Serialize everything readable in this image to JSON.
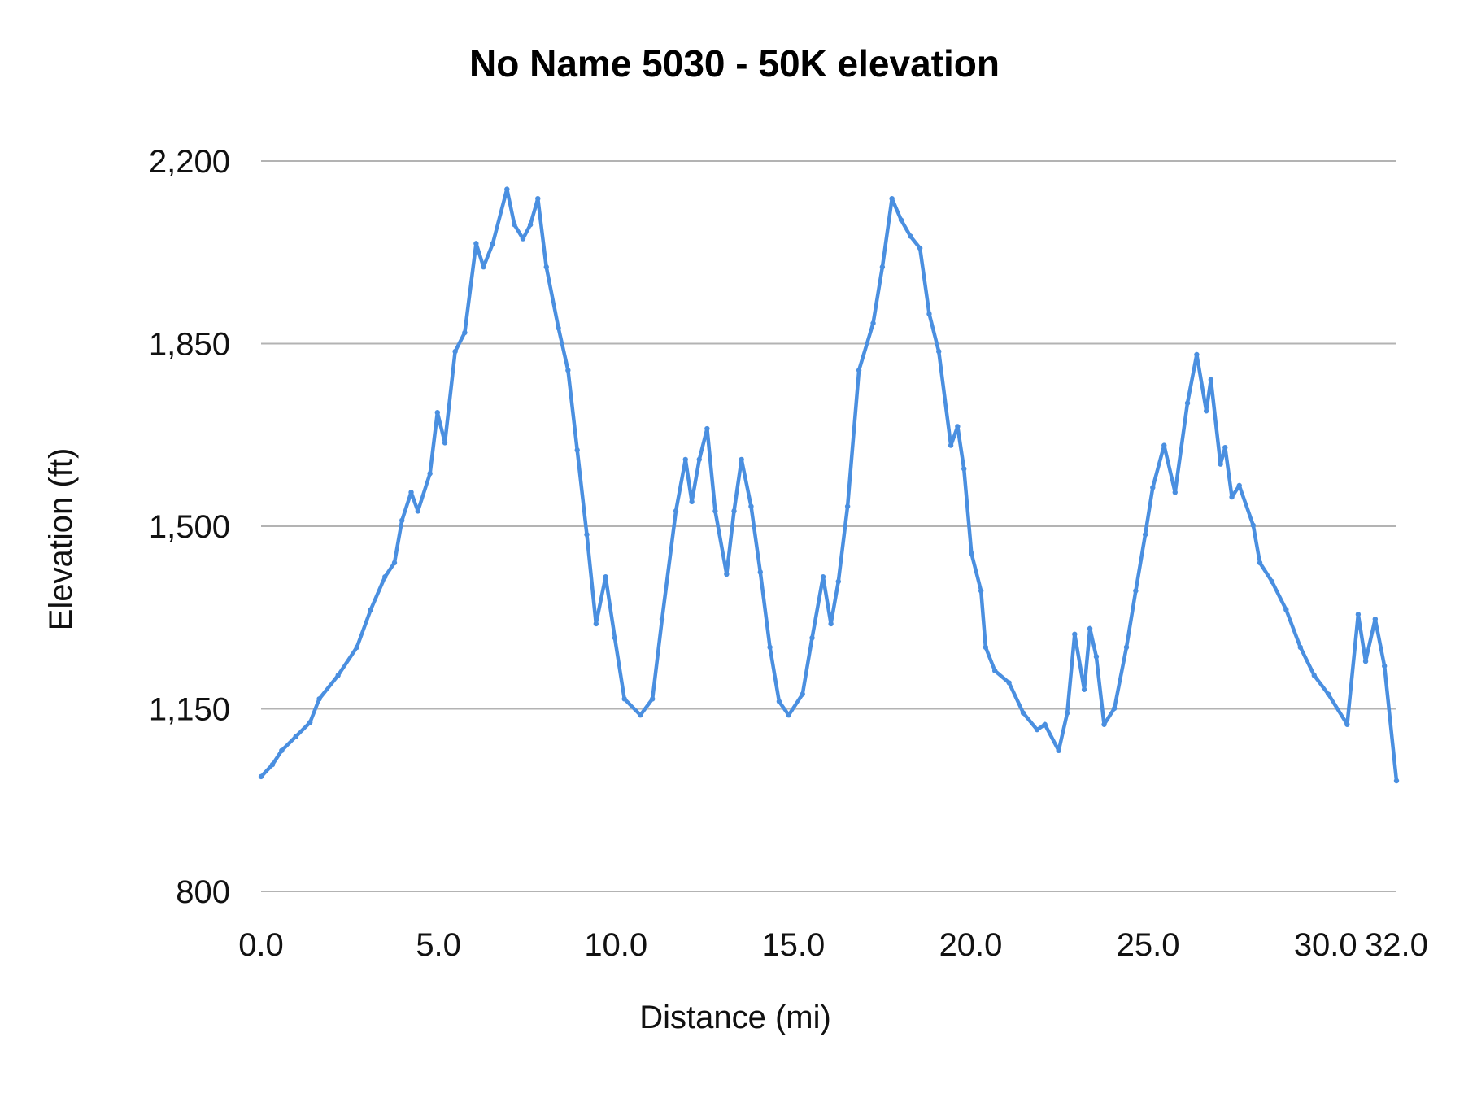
{
  "chart_data": {
    "type": "line",
    "title": "No Name 5030 - 50K elevation",
    "xlabel": "Distance (mi)",
    "ylabel": "Elevation (ft)",
    "xlim": [
      0,
      32
    ],
    "ylim": [
      800,
      2200
    ],
    "xticks": [
      0,
      5,
      10,
      15,
      20,
      25,
      30,
      32
    ],
    "xtick_labels": [
      "0.0",
      "5.0",
      "10.0",
      "15.0",
      "20.0",
      "25.0",
      "30.0",
      "32.0"
    ],
    "yticks": [
      800,
      1150,
      1500,
      1850,
      2200
    ],
    "ytick_labels": [
      "800",
      "1,150",
      "1,500",
      "1,850",
      "2,200"
    ],
    "grid": "horizontal",
    "legend": "none",
    "colors": {
      "series": "#4a8fe0",
      "grid": "#b3b3b3"
    },
    "series": [
      {
        "x": [
          0,
          0.32,
          0.58,
          0.98,
          1.38,
          1.64,
          2.17,
          2.7,
          3.09,
          3.49,
          3.76,
          3.97,
          4.23,
          4.42,
          4.76,
          4.97,
          5.18,
          5.47,
          5.74,
          6.06,
          6.27,
          6.53,
          6.93,
          7.14,
          7.38,
          7.59,
          7.8,
          8.04,
          8.38,
          8.65,
          8.91,
          9.18,
          9.44,
          9.71,
          9.97,
          10.24,
          10.69,
          11.03,
          11.3,
          11.69,
          11.96,
          12.14,
          12.35,
          12.57,
          12.8,
          13.12,
          13.33,
          13.54,
          13.81,
          14.07,
          14.34,
          14.6,
          14.87,
          15.26,
          15.53,
          15.84,
          16.06,
          16.27,
          16.53,
          16.85,
          17.25,
          17.51,
          17.78,
          18.04,
          18.3,
          18.57,
          18.83,
          19.1,
          19.44,
          19.63,
          19.81,
          20.02,
          20.29,
          20.42,
          20.68,
          21.08,
          21.48,
          21.87,
          22.09,
          22.48,
          22.72,
          22.93,
          23.2,
          23.36,
          23.54,
          23.76,
          24.05,
          24.39,
          24.65,
          24.92,
          25.13,
          25.45,
          25.76,
          26.11,
          26.37,
          26.64,
          26.77,
          27.04,
          27.17,
          27.36,
          27.57,
          27.96,
          28.15,
          28.49,
          28.89,
          29.29,
          29.68,
          30.08,
          30.61,
          30.92,
          31.13,
          31.4,
          31.66,
          32
        ],
        "y": [
          1020,
          1043,
          1070,
          1097,
          1124,
          1169,
          1214,
          1268,
          1340,
          1403,
          1430,
          1511,
          1565,
          1529,
          1601,
          1718,
          1660,
          1835,
          1871,
          2042,
          1997,
          2042,
          2146,
          2078,
          2051,
          2078,
          2128,
          1997,
          1880,
          1799,
          1646,
          1484,
          1313,
          1403,
          1286,
          1169,
          1138,
          1169,
          1322,
          1529,
          1628,
          1547,
          1628,
          1687,
          1529,
          1408,
          1529,
          1628,
          1538,
          1412,
          1268,
          1164,
          1138,
          1178,
          1286,
          1403,
          1313,
          1394,
          1538,
          1799,
          1889,
          1997,
          2128,
          2087,
          2056,
          2033,
          1907,
          1835,
          1655,
          1691,
          1610,
          1448,
          1376,
          1268,
          1223,
          1200,
          1142,
          1110,
          1120,
          1070,
          1142,
          1293,
          1187,
          1304,
          1250,
          1120,
          1151,
          1268,
          1376,
          1484,
          1574,
          1655,
          1565,
          1736,
          1829,
          1721,
          1781,
          1619,
          1651,
          1556,
          1578,
          1502,
          1430,
          1394,
          1340,
          1268,
          1214,
          1178,
          1120,
          1331,
          1241,
          1322,
          1232,
          1012
        ]
      }
    ]
  }
}
